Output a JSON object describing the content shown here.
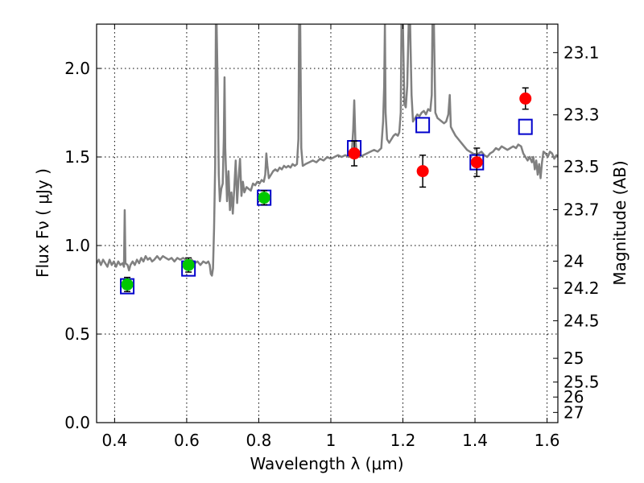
{
  "chart_data": {
    "type": "scatter",
    "xlabel": "Wavelength  λ (μm)",
    "ylabel": "Flux  Fν  ( μJy )",
    "ylabel_right": "Magnitude (AB)",
    "xlim": [
      0.35,
      1.63
    ],
    "ylim": [
      0.0,
      2.25
    ],
    "grid": true,
    "x_ticks": [
      0.4,
      0.6,
      0.8,
      1.0,
      1.2,
      1.4,
      1.6
    ],
    "x_tick_labels": [
      "0.4",
      "0.6",
      "0.8",
      "1",
      "1.2",
      "1.4",
      "1.6"
    ],
    "y_ticks": [
      0.0,
      0.5,
      1.0,
      1.5,
      2.0
    ],
    "y_tick_labels": [
      "0.0",
      "0.5",
      "1.0",
      "1.5",
      "2.0"
    ],
    "right_ticks": [
      {
        "flux": 2.0893,
        "label": "23.1"
      },
      {
        "flux": 1.7378,
        "label": "23.3"
      },
      {
        "flux": 1.4454,
        "label": "23.5"
      },
      {
        "flux": 1.2023,
        "label": "23.7"
      },
      {
        "flux": 0.912,
        "label": "24"
      },
      {
        "flux": 0.7586,
        "label": "24.2"
      },
      {
        "flux": 0.5754,
        "label": "24.5"
      },
      {
        "flux": 0.3631,
        "label": "25"
      },
      {
        "flux": 0.2291,
        "label": "25.5"
      },
      {
        "flux": 0.1445,
        "label": "26"
      },
      {
        "flux": 0.0575,
        "label": "27"
      }
    ],
    "series": [
      {
        "kind": "line",
        "color": "#808080",
        "points": [
          [
            0.35,
            0.9
          ],
          [
            0.356,
            0.92
          ],
          [
            0.362,
            0.89
          ],
          [
            0.368,
            0.92
          ],
          [
            0.374,
            0.9
          ],
          [
            0.38,
            0.88
          ],
          [
            0.386,
            0.92
          ],
          [
            0.392,
            0.89
          ],
          [
            0.398,
            0.91
          ],
          [
            0.404,
            0.88
          ],
          [
            0.41,
            0.91
          ],
          [
            0.416,
            0.89
          ],
          [
            0.422,
            0.9
          ],
          [
            0.426,
            0.88
          ],
          [
            0.428,
            1.2
          ],
          [
            0.43,
            0.9
          ],
          [
            0.436,
            0.89
          ],
          [
            0.44,
            0.86
          ],
          [
            0.444,
            0.89
          ],
          [
            0.45,
            0.91
          ],
          [
            0.456,
            0.89
          ],
          [
            0.462,
            0.92
          ],
          [
            0.468,
            0.9
          ],
          [
            0.474,
            0.93
          ],
          [
            0.48,
            0.91
          ],
          [
            0.486,
            0.94
          ],
          [
            0.492,
            0.92
          ],
          [
            0.498,
            0.93
          ],
          [
            0.504,
            0.91
          ],
          [
            0.51,
            0.92
          ],
          [
            0.518,
            0.94
          ],
          [
            0.526,
            0.92
          ],
          [
            0.534,
            0.94
          ],
          [
            0.542,
            0.93
          ],
          [
            0.55,
            0.92
          ],
          [
            0.558,
            0.93
          ],
          [
            0.566,
            0.91
          ],
          [
            0.574,
            0.93
          ],
          [
            0.582,
            0.92
          ],
          [
            0.59,
            0.93
          ],
          [
            0.598,
            0.92
          ],
          [
            0.606,
            0.91
          ],
          [
            0.614,
            0.92
          ],
          [
            0.622,
            0.9
          ],
          [
            0.63,
            0.91
          ],
          [
            0.638,
            0.89
          ],
          [
            0.646,
            0.91
          ],
          [
            0.654,
            0.9
          ],
          [
            0.66,
            0.91
          ],
          [
            0.664,
            0.89
          ],
          [
            0.667,
            0.84
          ],
          [
            0.67,
            0.83
          ],
          [
            0.673,
            0.87
          ],
          [
            0.676,
            1.1
          ],
          [
            0.679,
            1.45
          ],
          [
            0.681,
            2.25
          ],
          [
            0.683,
            2.25
          ],
          [
            0.686,
            1.9
          ],
          [
            0.689,
            1.4
          ],
          [
            0.692,
            1.25
          ],
          [
            0.696,
            1.32
          ],
          [
            0.7,
            1.35
          ],
          [
            0.703,
            1.6
          ],
          [
            0.705,
            1.95
          ],
          [
            0.707,
            1.55
          ],
          [
            0.712,
            1.25
          ],
          [
            0.716,
            1.42
          ],
          [
            0.72,
            1.2
          ],
          [
            0.724,
            1.3
          ],
          [
            0.728,
            1.18
          ],
          [
            0.732,
            1.32
          ],
          [
            0.736,
            1.48
          ],
          [
            0.74,
            1.24
          ],
          [
            0.744,
            1.38
          ],
          [
            0.748,
            1.49
          ],
          [
            0.752,
            1.28
          ],
          [
            0.756,
            1.36
          ],
          [
            0.76,
            1.3
          ],
          [
            0.766,
            1.33
          ],
          [
            0.772,
            1.32
          ],
          [
            0.778,
            1.31
          ],
          [
            0.784,
            1.35
          ],
          [
            0.79,
            1.34
          ],
          [
            0.796,
            1.36
          ],
          [
            0.802,
            1.35
          ],
          [
            0.808,
            1.37
          ],
          [
            0.814,
            1.36
          ],
          [
            0.818,
            1.4
          ],
          [
            0.821,
            1.52
          ],
          [
            0.824,
            1.45
          ],
          [
            0.828,
            1.38
          ],
          [
            0.834,
            1.4
          ],
          [
            0.84,
            1.42
          ],
          [
            0.846,
            1.43
          ],
          [
            0.852,
            1.42
          ],
          [
            0.858,
            1.44
          ],
          [
            0.864,
            1.43
          ],
          [
            0.87,
            1.45
          ],
          [
            0.876,
            1.44
          ],
          [
            0.882,
            1.45
          ],
          [
            0.888,
            1.44
          ],
          [
            0.894,
            1.46
          ],
          [
            0.9,
            1.45
          ],
          [
            0.906,
            1.46
          ],
          [
            0.91,
            1.6
          ],
          [
            0.912,
            2.25
          ],
          [
            0.915,
            2.25
          ],
          [
            0.918,
            1.55
          ],
          [
            0.922,
            1.45
          ],
          [
            0.93,
            1.46
          ],
          [
            0.94,
            1.47
          ],
          [
            0.95,
            1.48
          ],
          [
            0.96,
            1.47
          ],
          [
            0.97,
            1.49
          ],
          [
            0.98,
            1.48
          ],
          [
            0.99,
            1.5
          ],
          [
            1.0,
            1.49
          ],
          [
            1.01,
            1.5
          ],
          [
            1.02,
            1.51
          ],
          [
            1.03,
            1.5
          ],
          [
            1.04,
            1.51
          ],
          [
            1.05,
            1.5
          ],
          [
            1.058,
            1.52
          ],
          [
            1.062,
            1.65
          ],
          [
            1.065,
            1.82
          ],
          [
            1.068,
            1.6
          ],
          [
            1.072,
            1.52
          ],
          [
            1.08,
            1.5
          ],
          [
            1.09,
            1.51
          ],
          [
            1.1,
            1.52
          ],
          [
            1.11,
            1.53
          ],
          [
            1.12,
            1.54
          ],
          [
            1.13,
            1.53
          ],
          [
            1.14,
            1.55
          ],
          [
            1.145,
            1.7
          ],
          [
            1.148,
            1.9
          ],
          [
            1.15,
            2.25
          ],
          [
            1.152,
            1.75
          ],
          [
            1.156,
            1.6
          ],
          [
            1.162,
            1.58
          ],
          [
            1.168,
            1.6
          ],
          [
            1.174,
            1.62
          ],
          [
            1.18,
            1.63
          ],
          [
            1.186,
            1.62
          ],
          [
            1.19,
            1.64
          ],
          [
            1.194,
            1.75
          ],
          [
            1.196,
            2.25
          ],
          [
            1.2,
            2.25
          ],
          [
            1.204,
            1.8
          ],
          [
            1.208,
            1.78
          ],
          [
            1.212,
            1.9
          ],
          [
            1.216,
            2.25
          ],
          [
            1.22,
            2.25
          ],
          [
            1.224,
            1.85
          ],
          [
            1.228,
            1.7
          ],
          [
            1.234,
            1.72
          ],
          [
            1.24,
            1.74
          ],
          [
            1.246,
            1.73
          ],
          [
            1.252,
            1.75
          ],
          [
            1.258,
            1.76
          ],
          [
            1.264,
            1.74
          ],
          [
            1.27,
            1.77
          ],
          [
            1.276,
            1.76
          ],
          [
            1.28,
            1.85
          ],
          [
            1.282,
            2.25
          ],
          [
            1.286,
            2.25
          ],
          [
            1.29,
            1.75
          ],
          [
            1.296,
            1.72
          ],
          [
            1.302,
            1.71
          ],
          [
            1.308,
            1.7
          ],
          [
            1.314,
            1.69
          ],
          [
            1.32,
            1.7
          ],
          [
            1.326,
            1.74
          ],
          [
            1.33,
            1.85
          ],
          [
            1.333,
            1.67
          ],
          [
            1.338,
            1.65
          ],
          [
            1.346,
            1.62
          ],
          [
            1.354,
            1.6
          ],
          [
            1.362,
            1.58
          ],
          [
            1.37,
            1.56
          ],
          [
            1.378,
            1.54
          ],
          [
            1.386,
            1.53
          ],
          [
            1.394,
            1.52
          ],
          [
            1.402,
            1.51
          ],
          [
            1.41,
            1.52
          ],
          [
            1.418,
            1.53
          ],
          [
            1.426,
            1.51
          ],
          [
            1.434,
            1.5
          ],
          [
            1.442,
            1.52
          ],
          [
            1.45,
            1.53
          ],
          [
            1.458,
            1.55
          ],
          [
            1.466,
            1.54
          ],
          [
            1.474,
            1.56
          ],
          [
            1.482,
            1.55
          ],
          [
            1.49,
            1.54
          ],
          [
            1.498,
            1.55
          ],
          [
            1.506,
            1.56
          ],
          [
            1.514,
            1.55
          ],
          [
            1.52,
            1.57
          ],
          [
            1.528,
            1.56
          ],
          [
            1.534,
            1.52
          ],
          [
            1.54,
            1.5
          ],
          [
            1.546,
            1.48
          ],
          [
            1.552,
            1.5
          ],
          [
            1.558,
            1.47
          ],
          [
            1.562,
            1.5
          ],
          [
            1.566,
            1.43
          ],
          [
            1.57,
            1.48
          ],
          [
            1.574,
            1.4
          ],
          [
            1.578,
            1.46
          ],
          [
            1.582,
            1.38
          ],
          [
            1.586,
            1.47
          ],
          [
            1.59,
            1.53
          ],
          [
            1.596,
            1.52
          ],
          [
            1.602,
            1.5
          ],
          [
            1.608,
            1.53
          ],
          [
            1.614,
            1.52
          ],
          [
            1.62,
            1.49
          ],
          [
            1.626,
            1.51
          ],
          [
            1.63,
            1.5
          ]
        ]
      },
      {
        "kind": "square-markers",
        "color": "#0000cc",
        "points": [
          [
            0.435,
            0.77
          ],
          [
            0.605,
            0.87
          ],
          [
            0.815,
            1.27
          ],
          [
            1.065,
            1.55
          ],
          [
            1.255,
            1.68
          ],
          [
            1.405,
            1.47
          ],
          [
            1.54,
            1.67
          ]
        ]
      },
      {
        "kind": "filled-circles",
        "color": "#00c800",
        "points": [
          {
            "x": 0.435,
            "y": 0.78,
            "err": 0.04
          },
          {
            "x": 0.605,
            "y": 0.89,
            "err": 0.04
          },
          {
            "x": 0.815,
            "y": 1.27,
            "err": 0.04
          }
        ]
      },
      {
        "kind": "filled-circles",
        "color": "#ff0000",
        "points": [
          {
            "x": 1.065,
            "y": 1.52,
            "err": 0.07
          },
          {
            "x": 1.255,
            "y": 1.42,
            "err": 0.09
          },
          {
            "x": 1.405,
            "y": 1.47,
            "err": 0.08
          },
          {
            "x": 1.54,
            "y": 1.83,
            "err": 0.06
          }
        ]
      }
    ]
  }
}
